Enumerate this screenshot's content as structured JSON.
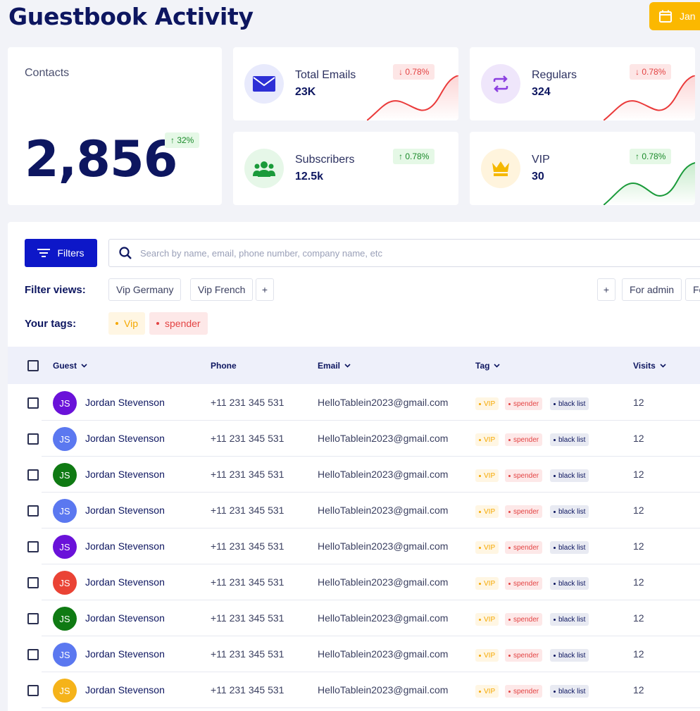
{
  "header": {
    "title": "Guestbook Activity",
    "date_label": "Jan"
  },
  "contacts": {
    "label": "Contacts",
    "value": "2,856",
    "change": "↑ 32%"
  },
  "stats": [
    {
      "label": "Total Emails",
      "value": "23K",
      "change": "↓ 0.78%",
      "trend": "down",
      "icon": "envelope-icon",
      "icon_color": "#2d2fd6",
      "icon_bg": "#e8eafc"
    },
    {
      "label": "Regulars",
      "value": "324",
      "change": "↓ 0.78%",
      "trend": "down",
      "icon": "repeat-icon",
      "icon_color": "#8b3fe0",
      "icon_bg": "#efe6fb"
    },
    {
      "label": "Subscribers",
      "value": "12.5k",
      "change": "↑ 0.78%",
      "trend": "up",
      "icon": "users-icon",
      "icon_color": "#1a9a3a",
      "icon_bg": "#e6f7e8"
    },
    {
      "label": "VIP",
      "value": "30",
      "change": "↑ 0.78%",
      "trend": "up",
      "icon": "crown-icon",
      "icon_color": "#f5b800",
      "icon_bg": "#fff4dd"
    }
  ],
  "toolbar": {
    "filters_label": "Filters",
    "search_placeholder": "Search by name, email, phone number, company name, etc"
  },
  "filter_views": {
    "label": "Filter views:",
    "items": [
      "Vip Germany",
      "Vip French"
    ],
    "add_label": "+",
    "right_add_label": "+",
    "right_items": [
      "For admin",
      "Fo"
    ]
  },
  "tags": {
    "label": "Your tags:",
    "items": [
      {
        "label": "Vip",
        "color": "#f5a800",
        "bg": "#fff6e3"
      },
      {
        "label": "spender",
        "color": "#e34343",
        "bg": "#fde8e8"
      }
    ]
  },
  "table": {
    "columns": [
      "Guest",
      "Phone",
      "Email",
      "Tag",
      "Visits"
    ],
    "rows": [
      {
        "initials": "JS",
        "avatar_color": "#6a12d9",
        "name": "Jordan Stevenson",
        "phone": "+11 231 345 531",
        "email": "HelloTablein2023@gmail.com",
        "tags": [
          "VIP",
          "spender",
          "black list"
        ],
        "visits": "12"
      },
      {
        "initials": "JS",
        "avatar_color": "#5b78f0",
        "name": "Jordan Stevenson",
        "phone": "+11 231 345 531",
        "email": "HelloTablein2023@gmail.com",
        "tags": [
          "VIP",
          "spender",
          "black list"
        ],
        "visits": "12"
      },
      {
        "initials": "JS",
        "avatar_color": "#0f7a13",
        "name": "Jordan Stevenson",
        "phone": "+11 231 345 531",
        "email": "HelloTablein2023@gmail.com",
        "tags": [
          "VIP",
          "spender",
          "black list"
        ],
        "visits": "12"
      },
      {
        "initials": "JS",
        "avatar_color": "#5b78f0",
        "name": "Jordan Stevenson",
        "phone": "+11 231 345 531",
        "email": "HelloTablein2023@gmail.com",
        "tags": [
          "VIP",
          "spender",
          "black list"
        ],
        "visits": "12"
      },
      {
        "initials": "JS",
        "avatar_color": "#6a12d9",
        "name": "Jordan Stevenson",
        "phone": "+11 231 345 531",
        "email": "HelloTablein2023@gmail.com",
        "tags": [
          "VIP",
          "spender",
          "black list"
        ],
        "visits": "12"
      },
      {
        "initials": "JS",
        "avatar_color": "#ea4335",
        "name": "Jordan Stevenson",
        "phone": "+11 231 345 531",
        "email": "HelloTablein2023@gmail.com",
        "tags": [
          "VIP",
          "spender",
          "black list"
        ],
        "visits": "12"
      },
      {
        "initials": "JS",
        "avatar_color": "#0f7a13",
        "name": "Jordan Stevenson",
        "phone": "+11 231 345 531",
        "email": "HelloTablein2023@gmail.com",
        "tags": [
          "VIP",
          "spender",
          "black list"
        ],
        "visits": "12"
      },
      {
        "initials": "JS",
        "avatar_color": "#5b78f0",
        "name": "Jordan Stevenson",
        "phone": "+11 231 345 531",
        "email": "HelloTablein2023@gmail.com",
        "tags": [
          "VIP",
          "spender",
          "black list"
        ],
        "visits": "12"
      },
      {
        "initials": "JS",
        "avatar_color": "#f5b31a",
        "name": "Jordan Stevenson",
        "phone": "+11 231 345 531",
        "email": "HelloTablein2023@gmail.com",
        "tags": [
          "VIP",
          "spender",
          "black list"
        ],
        "visits": "12"
      }
    ]
  }
}
